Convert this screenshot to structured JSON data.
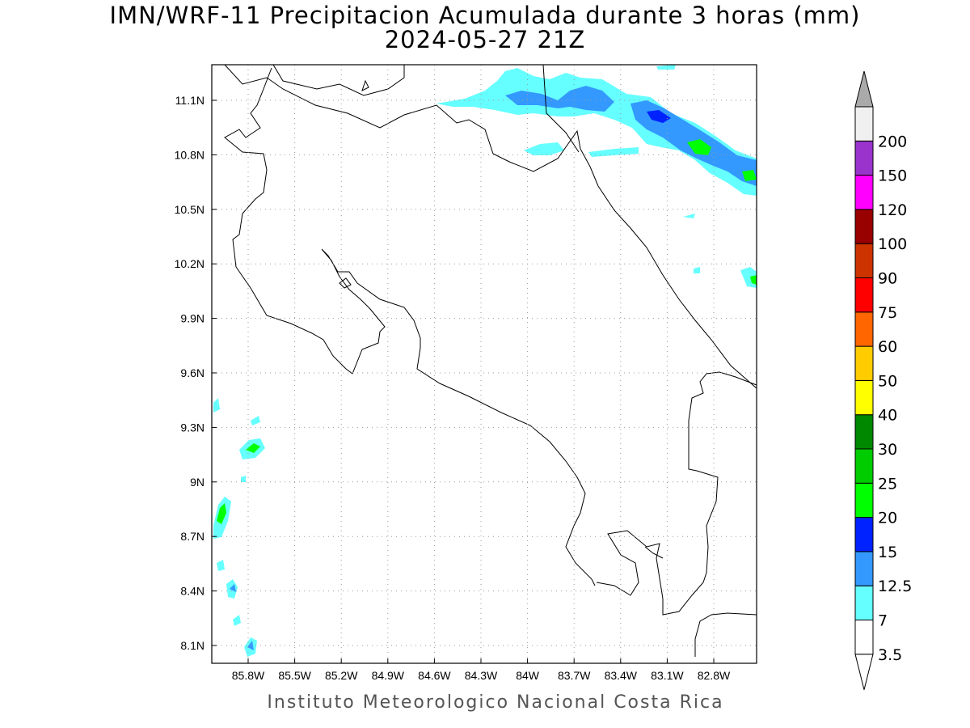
{
  "title_line1": "IMN/WRF-11 Precipitacion Acumulada durante 3 horas (mm)",
  "title_line2": "2024-05-27 21Z",
  "credit": "Instituto Meteorologico Nacional Costa Rica",
  "lat_ticks": [
    {
      "label": "11.1N",
      "value": 11.1
    },
    {
      "label": "10.8N",
      "value": 10.8
    },
    {
      "label": "10.5N",
      "value": 10.5
    },
    {
      "label": "10.2N",
      "value": 10.2
    },
    {
      "label": "9.9N",
      "value": 9.9
    },
    {
      "label": "9.6N",
      "value": 9.6
    },
    {
      "label": "9.3N",
      "value": 9.3
    },
    {
      "label": "9N",
      "value": 9.0
    },
    {
      "label": "8.7N",
      "value": 8.7
    },
    {
      "label": "8.4N",
      "value": 8.4
    },
    {
      "label": "8.1N",
      "value": 8.1
    }
  ],
  "lon_ticks": [
    {
      "label": "85.8W",
      "value": -85.8
    },
    {
      "label": "85.5W",
      "value": -85.5
    },
    {
      "label": "85.2W",
      "value": -85.2
    },
    {
      "label": "84.9W",
      "value": -84.9
    },
    {
      "label": "84.6W",
      "value": -84.6
    },
    {
      "label": "84.3W",
      "value": -84.3
    },
    {
      "label": "84W",
      "value": -84.0
    },
    {
      "label": "83.7W",
      "value": -83.7
    },
    {
      "label": "83.4W",
      "value": -83.4
    },
    {
      "label": "83.1W",
      "value": -83.1
    },
    {
      "label": "82.8W",
      "value": -82.8
    }
  ],
  "colorbar": {
    "labels": [
      "3.5",
      "7",
      "12.5",
      "15",
      "20",
      "25",
      "30",
      "40",
      "50",
      "60",
      "75",
      "90",
      "100",
      "120",
      "150",
      "200"
    ],
    "colors": [
      "#ffffff",
      "#66ffff",
      "#3399ff",
      "#0022ff",
      "#00ff00",
      "#00cc00",
      "#008800",
      "#ffff00",
      "#ffcc00",
      "#ff6600",
      "#ff0000",
      "#cc3300",
      "#990000",
      "#ff00ff",
      "#9933cc",
      "#f0f0f0"
    ],
    "upper_arrow_color": "#aaaaaa",
    "lower_arrow_color": "#ffffff"
  }
}
